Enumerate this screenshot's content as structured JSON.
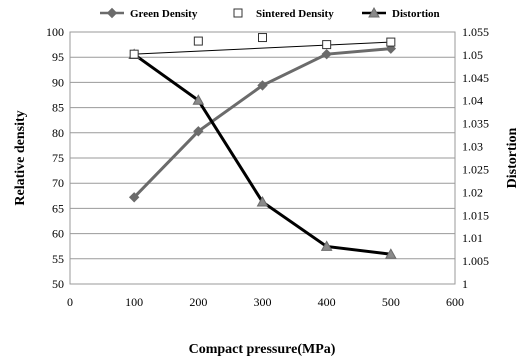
{
  "chart_data": {
    "type": "line",
    "title": "",
    "xlabel": "Compact pressure(MPa)",
    "ylabel": "Relative density",
    "y2label": "Distortion",
    "xlim": [
      0,
      600
    ],
    "ylim": [
      50,
      100
    ],
    "y2lim": [
      1,
      1.055
    ],
    "x_ticks": [
      "0",
      "100",
      "200",
      "300",
      "400",
      "500",
      "600"
    ],
    "y_ticks": [
      "50",
      "55",
      "60",
      "65",
      "70",
      "75",
      "80",
      "85",
      "90",
      "95",
      "100"
    ],
    "y2_ticks": [
      "1",
      "1.005",
      "1.01",
      "1.015",
      "1.02",
      "1.025",
      "1.03",
      "1.035",
      "1.04",
      "1.045",
      "1.05",
      "1.055"
    ],
    "grid": "horizontal",
    "legend_position": "top",
    "series": [
      {
        "name": "Green Density",
        "axis": "left",
        "color": "#6b6b6b",
        "marker": "diamond",
        "x": [
          100,
          200,
          300,
          400,
          500
        ],
        "values": [
          67.2,
          80.3,
          89.4,
          95.6,
          96.7
        ]
      },
      {
        "name": "Sintered Density",
        "axis": "left",
        "color": "#000000",
        "marker": "open-square",
        "x": [
          100,
          200,
          300,
          400,
          500
        ],
        "values": [
          95.6,
          98.2,
          98.9,
          97.5,
          98.0
        ]
      },
      {
        "name": "Distortion",
        "axis": "right",
        "color": "#000000",
        "marker": "triangle",
        "x": [
          100,
          200,
          300,
          400,
          500
        ],
        "values": [
          1.0501,
          1.0401,
          1.0179,
          1.0082,
          1.0065
        ]
      }
    ],
    "trendline": {
      "series": "Sintered Density",
      "x": [
        100,
        500
      ],
      "values": [
        95.6,
        98.0
      ]
    }
  }
}
